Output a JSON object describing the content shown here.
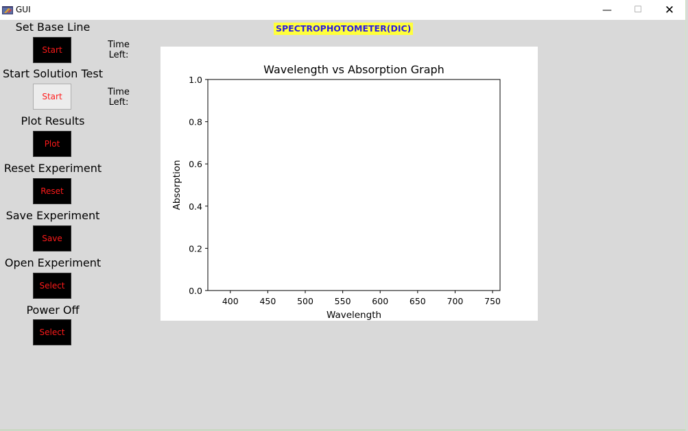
{
  "window": {
    "title": "GUI",
    "minimize_glyph": "—",
    "maximize_glyph": "☐",
    "close_glyph": "✕",
    "app_icon": "feather-window-icon"
  },
  "app": {
    "heading": "SPECTROPHOTOMETER(DIC)",
    "heading_bg": "#ffff3b",
    "heading_color": "#2b1be2"
  },
  "controls": [
    {
      "label": "Set Base Line",
      "button": "Start",
      "time_left": "Time\nLeft:"
    },
    {
      "label": "Start Solution Test",
      "button": "Start",
      "time_left": "Time\nLeft:"
    },
    {
      "label": "Plot Results",
      "button": "Plot"
    },
    {
      "label": "Reset Experiment",
      "button": "Reset"
    },
    {
      "label": "Save Experiment",
      "button": "Save"
    },
    {
      "label": "Open Experiment",
      "button": "Select"
    },
    {
      "label": "Power Off",
      "button": "Select"
    }
  ],
  "colors": {
    "button_bg": "#000000",
    "button_text": "#ff1a1a",
    "window_bg": "#d9d9d9"
  },
  "chart_data": {
    "type": "line",
    "title": "Wavelength vs Absorption Graph",
    "xlabel": "Wavelength",
    "ylabel": "Absorption",
    "xlim": [
      370,
      760
    ],
    "ylim": [
      0.0,
      1.0
    ],
    "xticks": [
      400,
      450,
      500,
      550,
      600,
      650,
      700,
      750
    ],
    "yticks": [
      0.0,
      0.2,
      0.4,
      0.6,
      0.8,
      1.0
    ],
    "xtick_labels": [
      "400",
      "450",
      "500",
      "550",
      "600",
      "650",
      "700",
      "750"
    ],
    "ytick_labels": [
      "0.0",
      "0.2",
      "0.4",
      "0.6",
      "0.8",
      "1.0"
    ],
    "series": [],
    "grid": false,
    "legend": "none"
  }
}
